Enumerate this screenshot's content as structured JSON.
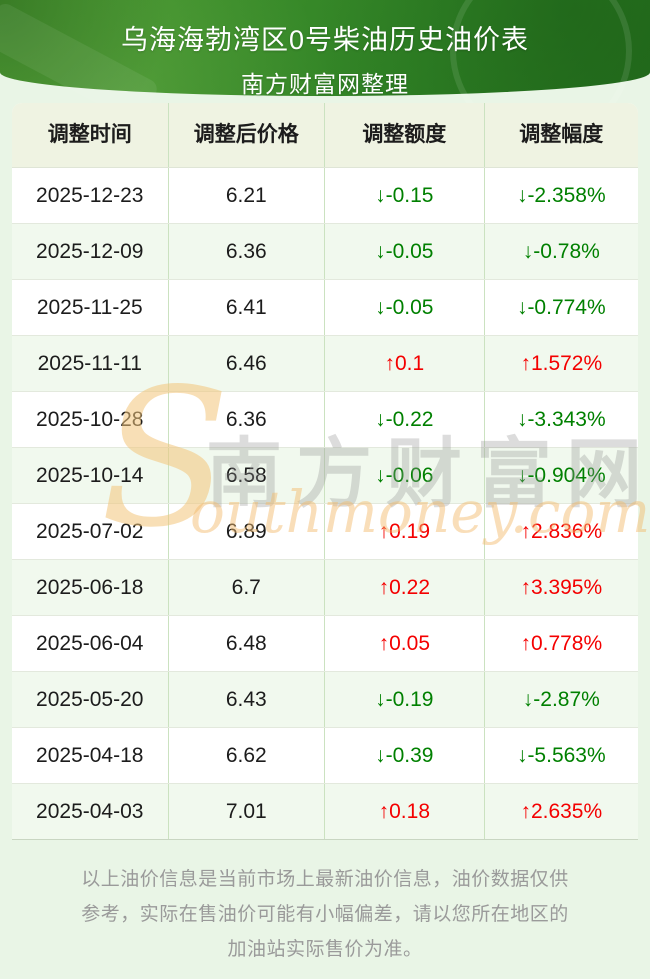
{
  "banner": {
    "title": "乌海海勃湾区0号柴油历史油价表",
    "subtitle": "南方财富网整理"
  },
  "table": {
    "headers": [
      "调整时间",
      "调整后价格",
      "调整额度",
      "调整幅度"
    ],
    "rows": [
      {
        "date": "2025-12-23",
        "price": "6.21",
        "change": "↓-0.15",
        "percent": "↓-2.358%",
        "direction": "down"
      },
      {
        "date": "2025-12-09",
        "price": "6.36",
        "change": "↓-0.05",
        "percent": "↓-0.78%",
        "direction": "down"
      },
      {
        "date": "2025-11-25",
        "price": "6.41",
        "change": "↓-0.05",
        "percent": "↓-0.774%",
        "direction": "down"
      },
      {
        "date": "2025-11-11",
        "price": "6.46",
        "change": "↑0.1",
        "percent": "↑1.572%",
        "direction": "up"
      },
      {
        "date": "2025-10-28",
        "price": "6.36",
        "change": "↓-0.22",
        "percent": "↓-3.343%",
        "direction": "down"
      },
      {
        "date": "2025-10-14",
        "price": "6.58",
        "change": "↓-0.06",
        "percent": "↓-0.904%",
        "direction": "down"
      },
      {
        "date": "2025-07-02",
        "price": "6.89",
        "change": "↑0.19",
        "percent": "↑2.836%",
        "direction": "up"
      },
      {
        "date": "2025-06-18",
        "price": "6.7",
        "change": "↑0.22",
        "percent": "↑3.395%",
        "direction": "up"
      },
      {
        "date": "2025-06-04",
        "price": "6.48",
        "change": "↑0.05",
        "percent": "↑0.778%",
        "direction": "up"
      },
      {
        "date": "2025-05-20",
        "price": "6.43",
        "change": "↓-0.19",
        "percent": "↓-2.87%",
        "direction": "down"
      },
      {
        "date": "2025-04-18",
        "price": "6.62",
        "change": "↓-0.39",
        "percent": "↓-5.563%",
        "direction": "down"
      },
      {
        "date": "2025-04-03",
        "price": "7.01",
        "change": "↑0.18",
        "percent": "↑2.635%",
        "direction": "up"
      }
    ]
  },
  "watermark": {
    "s": "S",
    "cn": "南方财富网",
    "en": "outhmoney.com"
  },
  "footer": {
    "note": "以上油价信息是当前市场上最新油价信息，油价数据仅供参考，实际在售油价可能有小幅偏差，请以您所在地区的加油站实际售价为准。"
  },
  "colors": {
    "up": "#f40000",
    "down": "#008000",
    "banner_green": "#2f8125",
    "header_bg": "#eff3e2",
    "alt_row_bg": "#f1f9ee",
    "page_bg": "#e9f5e6",
    "watermark_orange": "#f3bb6c"
  }
}
